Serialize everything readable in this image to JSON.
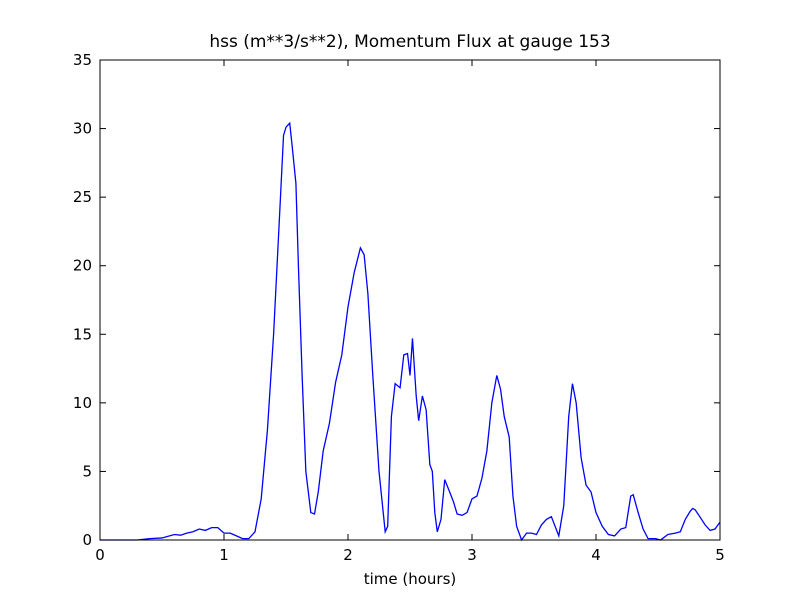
{
  "chart_data": {
    "type": "line",
    "title": "hss (m**3/s**2), Momentum Flux at gauge 153",
    "xlabel": "time (hours)",
    "x": [
      0,
      0.3,
      0.4,
      0.5,
      0.6,
      0.65,
      0.7,
      0.75,
      0.8,
      0.85,
      0.9,
      0.95,
      1.0,
      1.05,
      1.1,
      1.15,
      1.2,
      1.25,
      1.3,
      1.35,
      1.4,
      1.45,
      1.48,
      1.5,
      1.53,
      1.55,
      1.58,
      1.6,
      1.63,
      1.66,
      1.7,
      1.73,
      1.76,
      1.8,
      1.85,
      1.9,
      1.95,
      2.0,
      2.05,
      2.1,
      2.13,
      2.16,
      2.2,
      2.25,
      2.3,
      2.32,
      2.35,
      2.38,
      2.42,
      2.45,
      2.48,
      2.5,
      2.52,
      2.55,
      2.57,
      2.6,
      2.63,
      2.66,
      2.68,
      2.7,
      2.72,
      2.75,
      2.78,
      2.82,
      2.85,
      2.88,
      2.92,
      2.96,
      3.0,
      3.04,
      3.08,
      3.12,
      3.16,
      3.2,
      3.23,
      3.26,
      3.3,
      3.33,
      3.36,
      3.4,
      3.44,
      3.48,
      3.52,
      3.56,
      3.6,
      3.64,
      3.7,
      3.74,
      3.78,
      3.81,
      3.84,
      3.88,
      3.92,
      3.96,
      4.0,
      4.05,
      4.1,
      4.15,
      4.2,
      4.24,
      4.28,
      4.3,
      4.34,
      4.38,
      4.42,
      4.48,
      4.52,
      4.58,
      4.64,
      4.68,
      4.72,
      4.76,
      4.78,
      4.8,
      4.83,
      4.88,
      4.92,
      4.96,
      5.0
    ],
    "values": [
      0,
      0,
      0.1,
      0.15,
      0.4,
      0.35,
      0.5,
      0.6,
      0.8,
      0.7,
      0.9,
      0.9,
      0.5,
      0.5,
      0.3,
      0.1,
      0.1,
      0.6,
      3,
      8,
      15,
      24,
      29.5,
      30.1,
      30.4,
      28.7,
      26,
      20,
      12,
      5,
      2,
      1.9,
      3.5,
      6.5,
      8.5,
      11.5,
      13.5,
      17,
      19.5,
      21.3,
      20.8,
      18,
      12,
      5,
      0.6,
      1,
      9,
      11.4,
      11.1,
      13.5,
      13.6,
      12,
      14.7,
      10.5,
      8.7,
      10.5,
      9.5,
      5.5,
      5,
      2,
      0.6,
      1.5,
      4.4,
      3.5,
      2.8,
      1.9,
      1.8,
      2,
      3,
      3.2,
      4.5,
      6.5,
      10,
      12,
      11,
      9,
      7.5,
      3.2,
      1,
      0,
      0.5,
      0.5,
      0.4,
      1.1,
      1.5,
      1.7,
      0.3,
      2.5,
      9,
      11.4,
      10,
      6,
      4,
      3.5,
      2,
      1,
      0.4,
      0.3,
      0.8,
      0.9,
      3.2,
      3.3,
      2,
      0.8,
      0.1,
      0.1,
      0,
      0.4,
      0.5,
      0.6,
      1.5,
      2.1,
      2.3,
      2.2,
      1.8,
      1.1,
      0.7,
      0.8,
      1.3
    ],
    "color": "#0000ff",
    "hlines": [
      0
    ],
    "xlim": [
      0,
      5
    ],
    "xticks": [
      0,
      1,
      2,
      3,
      4,
      5
    ],
    "ylim": [
      0,
      35
    ],
    "yticks": [
      0,
      5,
      10,
      15,
      20,
      25,
      30,
      35
    ]
  }
}
